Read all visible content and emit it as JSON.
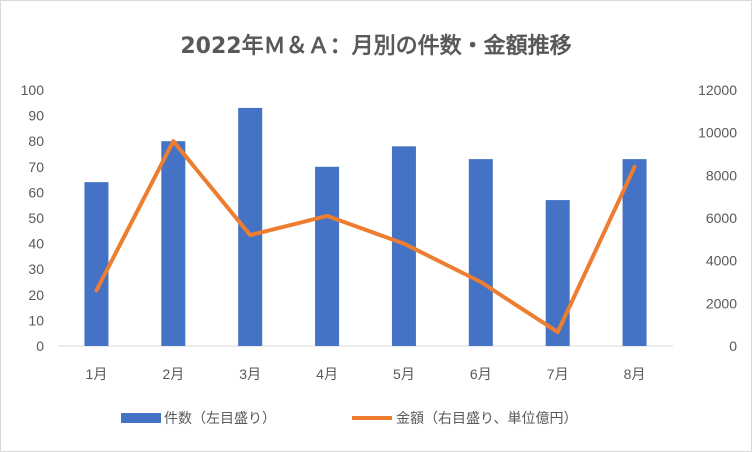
{
  "chart_data": {
    "type": "bar",
    "title": "2022年Ｍ＆Ａ：月別の件数・金額推移",
    "categories": [
      "1月",
      "2月",
      "3月",
      "4月",
      "5月",
      "6月",
      "7月",
      "8月"
    ],
    "series": [
      {
        "name": "件数（左目盛り）",
        "type": "bar",
        "axis": "left",
        "values": [
          64,
          80,
          93,
          70,
          78,
          73,
          57,
          73
        ],
        "color": "#4472c4"
      },
      {
        "name": "金額（右目盛り、単位億円）",
        "type": "line",
        "axis": "right",
        "values": [
          2600,
          9600,
          5200,
          6100,
          4800,
          3000,
          650,
          8400
        ],
        "color": "#ed7d31"
      }
    ],
    "y_left": {
      "min": 0,
      "max": 100,
      "step": 10,
      "ticks": [
        "0",
        "10",
        "20",
        "30",
        "40",
        "50",
        "60",
        "70",
        "80",
        "90",
        "100"
      ]
    },
    "y_right": {
      "min": 0,
      "max": 12000,
      "step": 2000,
      "ticks": [
        "0",
        "2000",
        "4000",
        "6000",
        "8000",
        "10000",
        "12000"
      ]
    },
    "grid": false,
    "legend_position": "bottom"
  }
}
